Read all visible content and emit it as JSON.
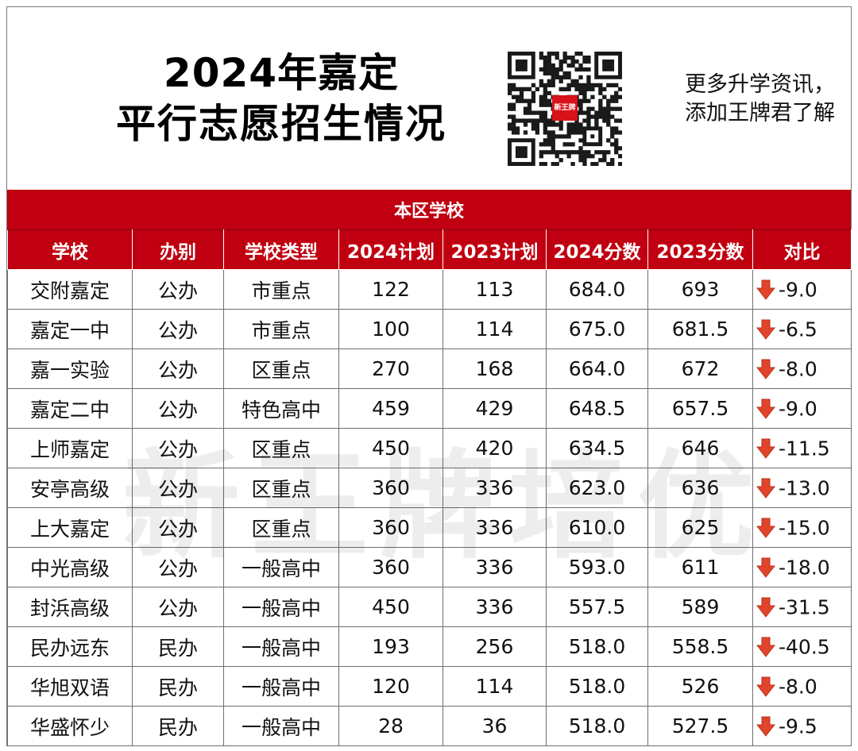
{
  "header": {
    "title_line1": "2024年嘉定",
    "title_line2": "平行志愿招生情况",
    "qr_badge_text": "新王牌",
    "promo_line1": "更多升学资讯，",
    "promo_line2": "添加王牌君了解"
  },
  "band": {
    "label": "本区学校"
  },
  "table": {
    "headers": [
      "学校",
      "办别",
      "学校类型",
      "2024计划",
      "2023计划",
      "2024分数",
      "2023分数",
      "对比"
    ],
    "rows": [
      [
        "交附嘉定",
        "公办",
        "市重点",
        "122",
        "113",
        "684.0",
        "693",
        "-9.0"
      ],
      [
        "嘉定一中",
        "公办",
        "市重点",
        "100",
        "114",
        "675.0",
        "681.5",
        "-6.5"
      ],
      [
        "嘉一实验",
        "公办",
        "区重点",
        "270",
        "168",
        "664.0",
        "672",
        "-8.0"
      ],
      [
        "嘉定二中",
        "公办",
        "特色高中",
        "459",
        "429",
        "648.5",
        "657.5",
        "-9.0"
      ],
      [
        "上师嘉定",
        "公办",
        "区重点",
        "450",
        "420",
        "634.5",
        "646",
        "-11.5"
      ],
      [
        "安亭高级",
        "公办",
        "区重点",
        "360",
        "336",
        "623.0",
        "636",
        "-13.0"
      ],
      [
        "上大嘉定",
        "公办",
        "区重点",
        "360",
        "336",
        "610.0",
        "625",
        "-15.0"
      ],
      [
        "中光高级",
        "公办",
        "一般高中",
        "360",
        "336",
        "593.0",
        "611",
        "-18.0"
      ],
      [
        "封浜高级",
        "公办",
        "一般高中",
        "450",
        "336",
        "557.5",
        "589",
        "-31.5"
      ],
      [
        "民办远东",
        "民办",
        "一般高中",
        "193",
        "256",
        "518.0",
        "558.5",
        "-40.5"
      ],
      [
        "华旭双语",
        "民办",
        "一般高中",
        "120",
        "114",
        "518.0",
        "526",
        "-8.0"
      ],
      [
        "华盛怀少",
        "民办",
        "一般高中",
        "28",
        "36",
        "518.0",
        "527.5",
        "-9.5"
      ]
    ]
  },
  "watermark": "新王牌培优",
  "icons": {
    "compare": "down-arrow-icon",
    "qr": "qr-code-icon"
  },
  "colors": {
    "accent": "#c00010",
    "arrow": "#e0442a"
  }
}
